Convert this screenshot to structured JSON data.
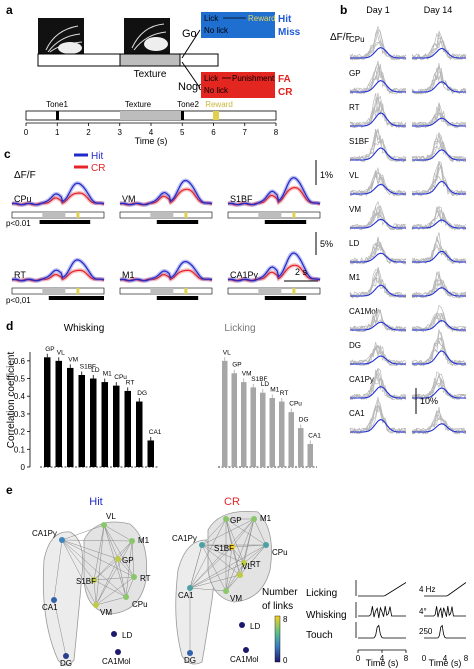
{
  "panels": {
    "a": "a",
    "b": "b",
    "c": "c",
    "d": "d",
    "e": "e"
  },
  "panel_a": {
    "go": "Go",
    "nogo": "Nogo",
    "texture": "Texture",
    "go_row1_left": "Lick",
    "go_row1_right": "Reward",
    "go_row1_outcome": "Hit",
    "go_row2": "No lick",
    "go_row2_outcome": "Miss",
    "nogo_row1_left": "Lick",
    "nogo_row1_right": "Punishment",
    "nogo_row1_outcome": "FA",
    "nogo_row2": "No lick",
    "nogo_row2_outcome": "CR",
    "timeline": {
      "tone1": "Tone1",
      "texture": "Texture",
      "tone2": "Tone2",
      "reward": "Reward",
      "ticks": [
        "0",
        "1",
        "2",
        "3",
        "4",
        "5",
        "6",
        "7",
        "8"
      ],
      "xlabel": "Time (s)"
    },
    "colors": {
      "go_box": "#1f6fd1",
      "nogo_box": "#e3261f",
      "reward": "#d8c94a",
      "outcome_blue": "#1d5bd6",
      "outcome_red": "#e0221b"
    }
  },
  "panel_c": {
    "ylabel": "ΔF/F",
    "legend_hit": "Hit",
    "legend_cr": "CR",
    "scale1": "1%",
    "scale2": "5%",
    "time_scale": "2 s",
    "pval1": "p<0.01",
    "pval2": "p<0,01",
    "colors": {
      "hit": "#2229c9",
      "cr": "#e5252a"
    },
    "regions": [
      {
        "name": "CPu",
        "hit_peak": 0.62,
        "cr_peak": 0.34
      },
      {
        "name": "VM",
        "hit_peak": 0.7,
        "cr_peak": 0.45
      },
      {
        "name": "S1BF",
        "hit_peak": 0.78,
        "cr_peak": 0.5
      },
      {
        "name": "RT",
        "hit_peak": 0.6,
        "cr_peak": 0.3
      },
      {
        "name": "M1",
        "hit_peak": 0.55,
        "cr_peak": 0.3
      },
      {
        "name": "CA1Py",
        "hit_peak": 0.8,
        "cr_peak": 0.45
      }
    ]
  },
  "panel_b": {
    "ylabel": "ΔF/F",
    "day1": "Day 1",
    "day14": "Day 14",
    "scale": "10%",
    "regions": [
      "CPu",
      "GP",
      "RT",
      "S1BF",
      "VL",
      "VM",
      "LD",
      "M1",
      "CA1Mol",
      "DG",
      "CA1Py",
      "CA1"
    ],
    "behaviour": [
      {
        "label": "Licking",
        "scale": "4 Hz"
      },
      {
        "label": "Whisking",
        "scale": "4°"
      },
      {
        "label": "Touch",
        "scale": "250"
      }
    ],
    "ticks": [
      "0",
      "4",
      "8"
    ],
    "xlabel": "Time (s)",
    "colors": {
      "trace": "#b8b8b8",
      "mean": "#2331d6"
    }
  },
  "chart_data": [
    {
      "type": "bar",
      "title": "Whisking",
      "ylabel": "Correlation coefficient",
      "ylim": [
        0,
        0.65
      ],
      "yticks": [
        "0",
        "0.1",
        "0.2",
        "0.3",
        "0.4",
        "0.5",
        "0.6"
      ],
      "categories": [
        "GP",
        "VL",
        "VM",
        "S1BF",
        "LD",
        "M1",
        "CPu",
        "RT",
        "DG",
        "CA1"
      ],
      "values": [
        0.62,
        0.6,
        0.56,
        0.52,
        0.5,
        0.48,
        0.46,
        0.43,
        0.37,
        0.15
      ],
      "errors": [
        0.02,
        0.02,
        0.02,
        0.02,
        0.02,
        0.02,
        0.02,
        0.02,
        0.02,
        0.02
      ],
      "color": "#000000"
    },
    {
      "type": "bar",
      "title": "Licking",
      "ylim": [
        0,
        0.65
      ],
      "categories": [
        "VL",
        "GP",
        "VM",
        "S1BF",
        "LD",
        "M1",
        "RT",
        "CPu",
        "DG",
        "CA1"
      ],
      "values": [
        0.6,
        0.53,
        0.48,
        0.45,
        0.42,
        0.39,
        0.37,
        0.31,
        0.22,
        0.13
      ],
      "errors": [
        0.02,
        0.02,
        0.02,
        0.02,
        0.02,
        0.02,
        0.02,
        0.02,
        0.02,
        0.02
      ],
      "color": "#a6a6a6"
    }
  ],
  "panel_e": {
    "hit_title": "Hit",
    "cr_title": "CR",
    "colorbar_title": "Number\nof links",
    "colorbar_min": "0",
    "colorbar_max": "8",
    "hit_nodes": [
      {
        "name": "CA1Py",
        "links": 3
      },
      {
        "name": "VL",
        "links": 6
      },
      {
        "name": "M1",
        "links": 6
      },
      {
        "name": "GP",
        "links": 7
      },
      {
        "name": "S1BF",
        "links": 7
      },
      {
        "name": "RT",
        "links": 6
      },
      {
        "name": "VM",
        "links": 7
      },
      {
        "name": "CPu",
        "links": 6
      },
      {
        "name": "CA1",
        "links": 2
      },
      {
        "name": "DG",
        "links": 1
      },
      {
        "name": "LD",
        "links": 0
      },
      {
        "name": "CA1Mol",
        "links": 0
      }
    ],
    "cr_nodes": [
      {
        "name": "GP",
        "links": 6
      },
      {
        "name": "M1",
        "links": 6
      },
      {
        "name": "CA1Py",
        "links": 4
      },
      {
        "name": "S1BF",
        "links": 8
      },
      {
        "name": "CPu",
        "links": 4
      },
      {
        "name": "RT",
        "links": 7
      },
      {
        "name": "VL",
        "links": 7
      },
      {
        "name": "VM",
        "links": 6
      },
      {
        "name": "CA1",
        "links": 4
      },
      {
        "name": "DG",
        "links": 2
      },
      {
        "name": "LD",
        "links": 0
      },
      {
        "name": "CA1Mol",
        "links": 0
      }
    ]
  }
}
